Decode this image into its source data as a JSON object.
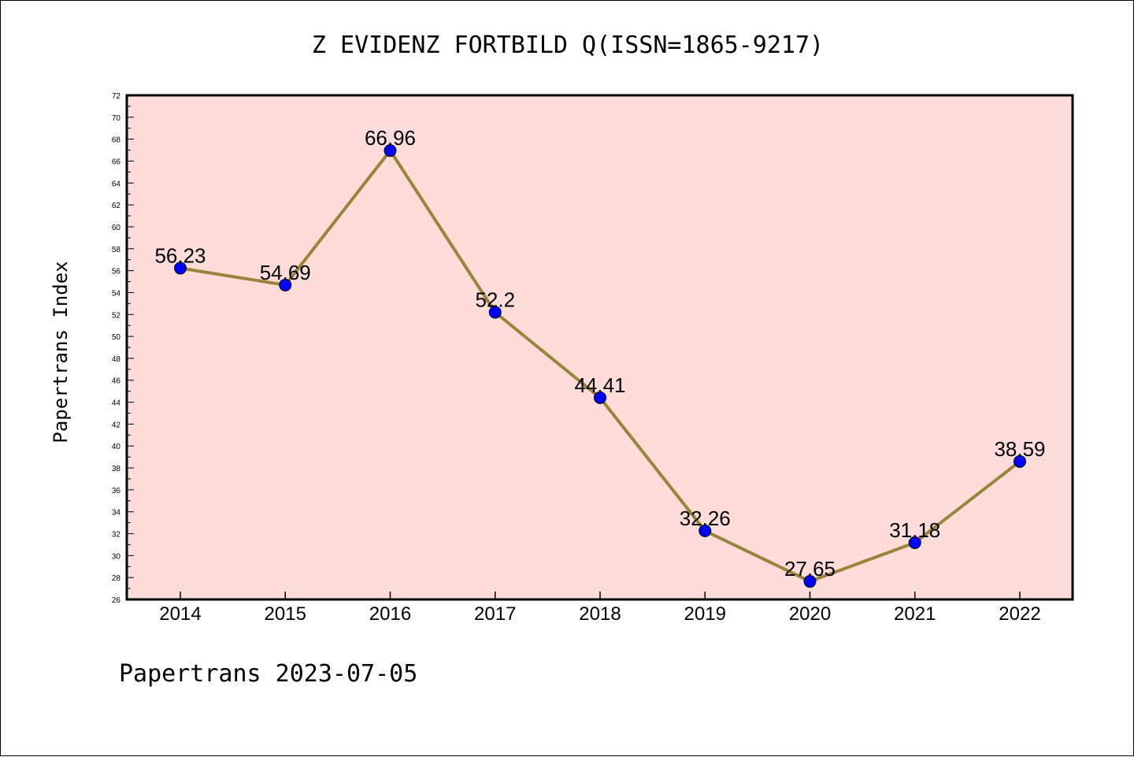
{
  "colors": {
    "plot_background": "#fddcda",
    "line": "#9b8439",
    "marker": "#0000ff",
    "axis": "#000000"
  },
  "footer": "Papertrans 2023-07-05",
  "chart_data": {
    "type": "line",
    "title": "Z EVIDENZ FORTBILD Q(ISSN=1865-9217)",
    "xlabel": "",
    "ylabel": "Papertrans Index",
    "categories": [
      "2014",
      "2015",
      "2016",
      "2017",
      "2018",
      "2019",
      "2020",
      "2021",
      "2022"
    ],
    "series": [
      {
        "values": [
          56.23,
          54.69,
          66.96,
          52.2,
          44.41,
          32.26,
          27.65,
          31.18,
          38.59
        ],
        "data_labels": [
          "56.23",
          "54.69",
          "66.96",
          "52.2",
          "44.41",
          "32.26",
          "27.65",
          "31.18",
          "38.59"
        ]
      }
    ],
    "ylim": [
      26,
      72
    ],
    "yticks": [
      "26",
      "28",
      "30",
      "32",
      "34",
      "36",
      "38",
      "40",
      "42",
      "44",
      "46",
      "48",
      "50",
      "52",
      "54",
      "56",
      "58",
      "60",
      "62",
      "64",
      "66",
      "68",
      "70",
      "72"
    ],
    "grid": false,
    "legend": "none"
  }
}
